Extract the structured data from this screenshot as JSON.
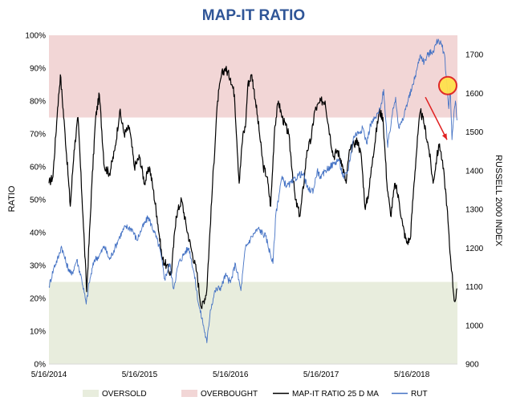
{
  "chart_data": {
    "type": "line",
    "title": "MAP-IT RATIO",
    "ylabel": "RATIO",
    "y2label": "RUSSELL 2000 INDEX",
    "ylim": [
      0,
      100
    ],
    "y2lim": [
      900,
      1750
    ],
    "x_ticks": [
      "5/16/2014",
      "5/16/2015",
      "5/16/2016",
      "5/16/2017",
      "5/16/2018"
    ],
    "y_ticks": [
      "0%",
      "10%",
      "20%",
      "30%",
      "40%",
      "50%",
      "60%",
      "70%",
      "80%",
      "90%",
      "100%"
    ],
    "y2_ticks": [
      "900",
      "1000",
      "1100",
      "1200",
      "1300",
      "1400",
      "1500",
      "1600",
      "1700"
    ],
    "bands": [
      {
        "name": "OVERBOUGHT",
        "from": 75,
        "to": 100,
        "color": "#f2d6d6"
      },
      {
        "name": "OVERSOLD",
        "from": 0,
        "to": 25,
        "color": "#e8eddd"
      }
    ],
    "legend_position": "bottom",
    "legend": [
      "OVERSOLD",
      "OVERBOUGHT",
      "MAP-IT RATIO 25 D MA",
      "RUT"
    ],
    "series": [
      {
        "name": "MAP-IT RATIO 25 D MA",
        "axis": "left",
        "color": "#000000",
        "points": [
          [
            "2014-05-16",
            55
          ],
          [
            "2014-06-01",
            57
          ],
          [
            "2014-06-20",
            78
          ],
          [
            "2014-07-01",
            88
          ],
          [
            "2014-07-20",
            70
          ],
          [
            "2014-08-10",
            48
          ],
          [
            "2014-08-25",
            65
          ],
          [
            "2014-09-10",
            75
          ],
          [
            "2014-09-30",
            45
          ],
          [
            "2014-10-15",
            22
          ],
          [
            "2014-11-05",
            55
          ],
          [
            "2014-11-20",
            75
          ],
          [
            "2014-12-05",
            82
          ],
          [
            "2014-12-25",
            60
          ],
          [
            "2015-01-15",
            58
          ],
          [
            "2015-02-05",
            65
          ],
          [
            "2015-02-25",
            77
          ],
          [
            "2015-03-15",
            70
          ],
          [
            "2015-04-05",
            72
          ],
          [
            "2015-04-25",
            60
          ],
          [
            "2015-05-16",
            63
          ],
          [
            "2015-06-05",
            55
          ],
          [
            "2015-06-25",
            60
          ],
          [
            "2015-07-10",
            53
          ],
          [
            "2015-07-25",
            45
          ],
          [
            "2015-08-15",
            32
          ],
          [
            "2015-09-01",
            30
          ],
          [
            "2015-09-20",
            27
          ],
          [
            "2015-10-10",
            45
          ],
          [
            "2015-11-01",
            50
          ],
          [
            "2015-11-20",
            42
          ],
          [
            "2015-12-10",
            35
          ],
          [
            "2016-01-01",
            28
          ],
          [
            "2016-01-20",
            17
          ],
          [
            "2016-02-10",
            22
          ],
          [
            "2016-03-05",
            55
          ],
          [
            "2016-03-25",
            80
          ],
          [
            "2016-04-10",
            88
          ],
          [
            "2016-04-25",
            90
          ],
          [
            "2016-05-16",
            87
          ],
          [
            "2016-06-01",
            82
          ],
          [
            "2016-06-20",
            55
          ],
          [
            "2016-07-05",
            70
          ],
          [
            "2016-07-15",
            72
          ],
          [
            "2016-07-25",
            85
          ],
          [
            "2016-08-10",
            88
          ],
          [
            "2016-08-25",
            80
          ],
          [
            "2016-09-10",
            70
          ],
          [
            "2016-09-25",
            60
          ],
          [
            "2016-10-10",
            57
          ],
          [
            "2016-10-25",
            48
          ],
          [
            "2016-11-10",
            72
          ],
          [
            "2016-11-25",
            80
          ],
          [
            "2016-12-10",
            75
          ],
          [
            "2017-01-05",
            70
          ],
          [
            "2017-02-01",
            50
          ],
          [
            "2017-02-20",
            45
          ],
          [
            "2017-03-10",
            57
          ],
          [
            "2017-03-20",
            65
          ],
          [
            "2017-04-05",
            68
          ],
          [
            "2017-04-20",
            77
          ],
          [
            "2017-05-16",
            80
          ],
          [
            "2017-06-01",
            80
          ],
          [
            "2017-06-20",
            70
          ],
          [
            "2017-07-05",
            63
          ],
          [
            "2017-07-20",
            65
          ],
          [
            "2017-08-05",
            62
          ],
          [
            "2017-08-25",
            55
          ],
          [
            "2017-09-05",
            64
          ],
          [
            "2017-09-25",
            67
          ],
          [
            "2017-10-10",
            68
          ],
          [
            "2017-10-25",
            63
          ],
          [
            "2017-11-10",
            47
          ],
          [
            "2017-11-25",
            53
          ],
          [
            "2017-12-10",
            63
          ],
          [
            "2018-01-05",
            77
          ],
          [
            "2018-01-20",
            75
          ],
          [
            "2018-02-05",
            55
          ],
          [
            "2018-02-20",
            45
          ],
          [
            "2018-03-10",
            55
          ],
          [
            "2018-03-25",
            50
          ],
          [
            "2018-04-10",
            42
          ],
          [
            "2018-04-25",
            37
          ],
          [
            "2018-05-10",
            38
          ],
          [
            "2018-05-25",
            55
          ],
          [
            "2018-06-10",
            70
          ],
          [
            "2018-06-20",
            77
          ],
          [
            "2018-07-05",
            73
          ],
          [
            "2018-07-25",
            65
          ],
          [
            "2018-08-10",
            55
          ],
          [
            "2018-08-25",
            63
          ],
          [
            "2018-09-05",
            67
          ],
          [
            "2018-09-15",
            62
          ],
          [
            "2018-09-25",
            56
          ],
          [
            "2018-10-05",
            48
          ],
          [
            "2018-10-15",
            36
          ],
          [
            "2018-10-25",
            28
          ],
          [
            "2018-11-01",
            21
          ],
          [
            "2018-11-06",
            19
          ],
          [
            "2018-11-10",
            20
          ],
          [
            "2018-11-14",
            23
          ]
        ]
      },
      {
        "name": "RUT",
        "axis": "right",
        "color": "#4472c4",
        "points": [
          [
            "2014-05-16",
            1100
          ],
          [
            "2014-06-05",
            1150
          ],
          [
            "2014-06-25",
            1180
          ],
          [
            "2014-07-05",
            1205
          ],
          [
            "2014-07-25",
            1160
          ],
          [
            "2014-08-15",
            1130
          ],
          [
            "2014-09-05",
            1170
          ],
          [
            "2014-09-25",
            1120
          ],
          [
            "2014-10-13",
            1055
          ],
          [
            "2014-10-25",
            1110
          ],
          [
            "2014-11-15",
            1170
          ],
          [
            "2014-12-05",
            1180
          ],
          [
            "2014-12-25",
            1205
          ],
          [
            "2015-01-15",
            1170
          ],
          [
            "2015-02-05",
            1200
          ],
          [
            "2015-02-25",
            1230
          ],
          [
            "2015-03-20",
            1255
          ],
          [
            "2015-04-15",
            1250
          ],
          [
            "2015-05-05",
            1220
          ],
          [
            "2015-05-25",
            1250
          ],
          [
            "2015-06-20",
            1280
          ],
          [
            "2015-07-15",
            1240
          ],
          [
            "2015-08-05",
            1200
          ],
          [
            "2015-08-25",
            1120
          ],
          [
            "2015-09-15",
            1160
          ],
          [
            "2015-09-29",
            1095
          ],
          [
            "2015-10-20",
            1160
          ],
          [
            "2015-11-15",
            1190
          ],
          [
            "2015-12-01",
            1200
          ],
          [
            "2015-12-20",
            1140
          ],
          [
            "2016-01-10",
            1050
          ],
          [
            "2016-01-25",
            1010
          ],
          [
            "2016-02-11",
            955
          ],
          [
            "2016-02-25",
            1040
          ],
          [
            "2016-03-15",
            1090
          ],
          [
            "2016-04-10",
            1100
          ],
          [
            "2016-04-25",
            1130
          ],
          [
            "2016-05-16",
            1110
          ],
          [
            "2016-06-05",
            1160
          ],
          [
            "2016-06-27",
            1090
          ],
          [
            "2016-07-15",
            1200
          ],
          [
            "2016-08-10",
            1230
          ],
          [
            "2016-09-05",
            1250
          ],
          [
            "2016-10-05",
            1230
          ],
          [
            "2016-11-03",
            1160
          ],
          [
            "2016-11-15",
            1290
          ],
          [
            "2016-12-08",
            1380
          ],
          [
            "2016-12-30",
            1360
          ],
          [
            "2017-01-20",
            1370
          ],
          [
            "2017-02-15",
            1390
          ],
          [
            "2017-03-05",
            1390
          ],
          [
            "2017-03-25",
            1350
          ],
          [
            "2017-04-15",
            1350
          ],
          [
            "2017-04-30",
            1400
          ],
          [
            "2017-05-16",
            1380
          ],
          [
            "2017-06-01",
            1400
          ],
          [
            "2017-06-20",
            1410
          ],
          [
            "2017-07-10",
            1420
          ],
          [
            "2017-07-25",
            1430
          ],
          [
            "2017-08-15",
            1380
          ],
          [
            "2017-09-01",
            1400
          ],
          [
            "2017-09-25",
            1490
          ],
          [
            "2017-10-15",
            1500
          ],
          [
            "2017-11-01",
            1510
          ],
          [
            "2017-11-15",
            1470
          ],
          [
            "2017-12-01",
            1520
          ],
          [
            "2017-12-25",
            1540
          ],
          [
            "2018-01-10",
            1560
          ],
          [
            "2018-01-23",
            1610
          ],
          [
            "2018-02-08",
            1460
          ],
          [
            "2018-02-25",
            1540
          ],
          [
            "2018-03-12",
            1590
          ],
          [
            "2018-03-25",
            1510
          ],
          [
            "2018-04-10",
            1530
          ],
          [
            "2018-04-25",
            1570
          ],
          [
            "2018-05-16",
            1610
          ],
          [
            "2018-06-05",
            1660
          ],
          [
            "2018-06-20",
            1700
          ],
          [
            "2018-07-05",
            1680
          ],
          [
            "2018-07-20",
            1700
          ],
          [
            "2018-08-10",
            1710
          ],
          [
            "2018-08-31",
            1740
          ],
          [
            "2018-09-15",
            1720
          ],
          [
            "2018-09-25",
            1700
          ],
          [
            "2018-10-05",
            1620
          ],
          [
            "2018-10-12",
            1560
          ],
          [
            "2018-10-18",
            1620
          ],
          [
            "2018-10-25",
            1480
          ],
          [
            "2018-11-01",
            1540
          ],
          [
            "2018-11-08",
            1580
          ],
          [
            "2018-11-14",
            1530
          ]
        ]
      }
    ],
    "annotations": [
      {
        "kind": "circle",
        "x": "2018-10-08",
        "y2": 1620,
        "fill": "#ffe14d",
        "stroke": "#e02020"
      },
      {
        "kind": "arrow",
        "from_x": "2018-07-10",
        "from_y2": 1590,
        "to_x": "2018-10-05",
        "to_y2": 1480,
        "color": "#e02020"
      }
    ]
  }
}
